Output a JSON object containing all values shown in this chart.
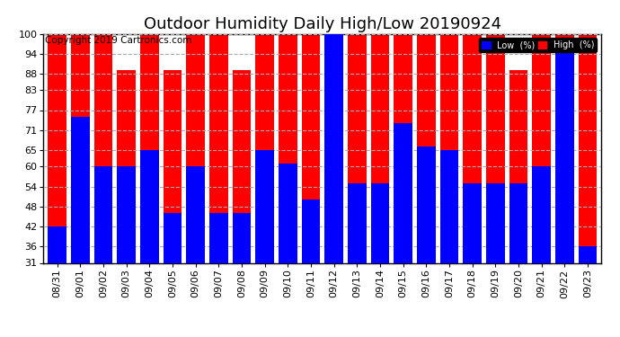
{
  "title": "Outdoor Humidity Daily High/Low 20190924",
  "copyright": "Copyright 2019 Cartronics.com",
  "dates": [
    "08/31",
    "09/01",
    "09/02",
    "09/03",
    "09/04",
    "09/05",
    "09/06",
    "09/07",
    "09/08",
    "09/09",
    "09/10",
    "09/11",
    "09/12",
    "09/13",
    "09/14",
    "09/15",
    "09/16",
    "09/17",
    "09/18",
    "09/19",
    "09/20",
    "09/21",
    "09/22",
    "09/23"
  ],
  "high": [
    100,
    100,
    100,
    89,
    100,
    89,
    100,
    100,
    89,
    100,
    100,
    100,
    100,
    100,
    100,
    100,
    100,
    100,
    100,
    100,
    89,
    100,
    100,
    100
  ],
  "low": [
    42,
    75,
    60,
    60,
    65,
    46,
    60,
    46,
    46,
    65,
    61,
    50,
    100,
    55,
    55,
    73,
    66,
    65,
    55,
    55,
    55,
    60,
    95,
    36
  ],
  "yticks": [
    31,
    36,
    42,
    48,
    54,
    60,
    65,
    71,
    77,
    83,
    88,
    94,
    100
  ],
  "ymin": 31,
  "ymax": 100,
  "bar_width": 0.8,
  "high_color": "#ff0000",
  "low_color": "#0000ff",
  "bg_color": "#ffffff",
  "grid_color": "#aaaaaa",
  "legend_low_label": "Low  (%)",
  "legend_high_label": "High  (%)",
  "title_fontsize": 13,
  "copyright_fontsize": 7.5,
  "tick_fontsize": 8,
  "xlabel_rotation": 90
}
